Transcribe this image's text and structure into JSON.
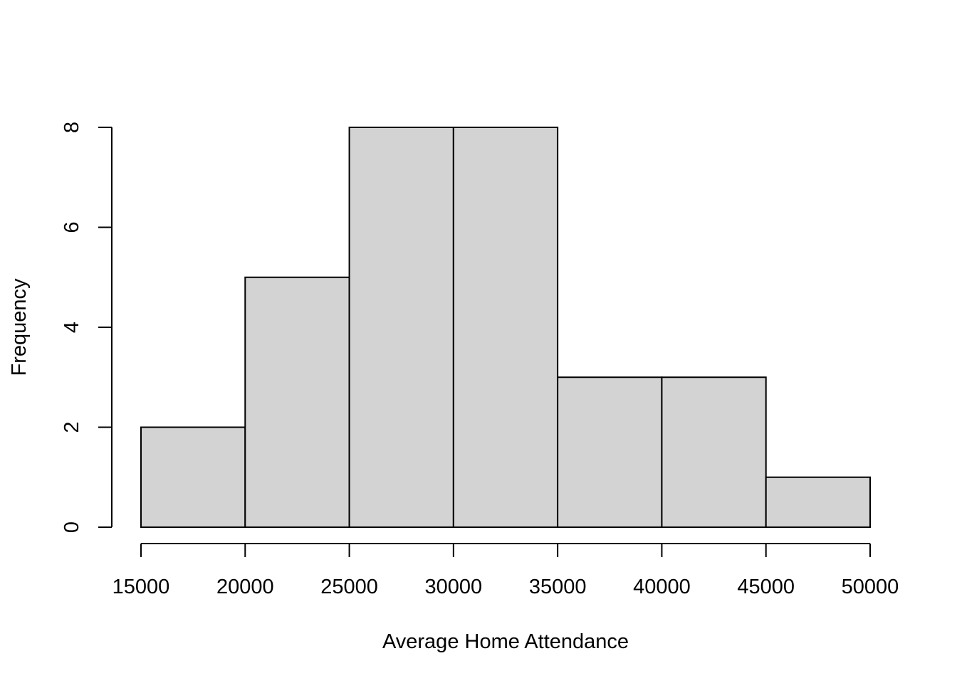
{
  "chart_data": {
    "type": "bar",
    "histogram": true,
    "title": "",
    "xlabel": "Average Home Attendance",
    "ylabel": "Frequency",
    "bins": [
      {
        "start": 15000,
        "end": 20000,
        "count": 2
      },
      {
        "start": 20000,
        "end": 25000,
        "count": 5
      },
      {
        "start": 25000,
        "end": 30000,
        "count": 8
      },
      {
        "start": 30000,
        "end": 35000,
        "count": 8
      },
      {
        "start": 35000,
        "end": 40000,
        "count": 3
      },
      {
        "start": 40000,
        "end": 45000,
        "count": 3
      },
      {
        "start": 45000,
        "end": 50000,
        "count": 1
      }
    ],
    "xlim": [
      15000,
      50000
    ],
    "ylim": [
      0,
      8
    ],
    "x_ticks": [
      "15000",
      "20000",
      "25000",
      "30000",
      "35000",
      "40000",
      "45000",
      "50000"
    ],
    "y_ticks": [
      "0",
      "2",
      "4",
      "6",
      "8"
    ],
    "grid": false,
    "legend": "none",
    "colors": {
      "bar_fill": "#d3d3d3",
      "bar_stroke": "#000000",
      "axis": "#000000"
    }
  }
}
